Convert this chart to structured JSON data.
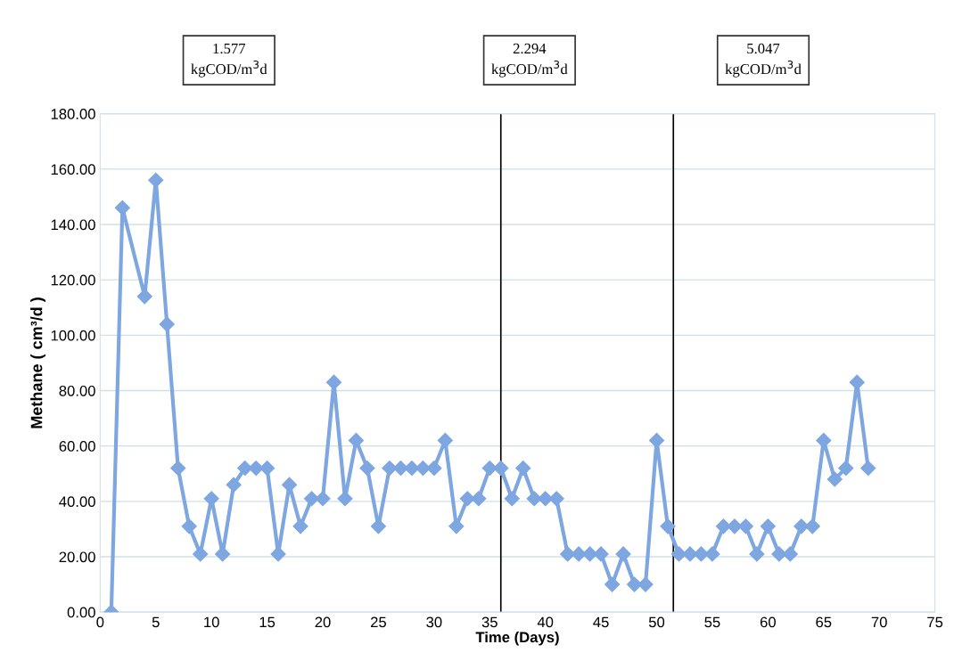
{
  "chart_data": {
    "type": "line",
    "xlabel": "Time (Days)",
    "ylabel": "Methane ( cm³/d )",
    "x": [
      1,
      2,
      4,
      5,
      6,
      7,
      8,
      9,
      10,
      11,
      12,
      13,
      14,
      15,
      16,
      17,
      18,
      19,
      20,
      21,
      22,
      23,
      24,
      25,
      26,
      27,
      28,
      29,
      30,
      31,
      32,
      33,
      34,
      35,
      36,
      37,
      38,
      39,
      40,
      41,
      42,
      43,
      44,
      45,
      46,
      47,
      48,
      49,
      50,
      51,
      52,
      53,
      54,
      55,
      56,
      57,
      58,
      59,
      60,
      61,
      62,
      63,
      64,
      65,
      66,
      67,
      68,
      69
    ],
    "series": [
      {
        "color": "#7ea6e0",
        "values": [
          0,
          146,
          114,
          156,
          104,
          52,
          31,
          21,
          41,
          21,
          46,
          52,
          52,
          52,
          21,
          46,
          31,
          41,
          41,
          83,
          41,
          62,
          52,
          31,
          52,
          52,
          52,
          52,
          52,
          62,
          31,
          41,
          41,
          52,
          52,
          41,
          52,
          41,
          41,
          41,
          21,
          21,
          21,
          21,
          10,
          21,
          10,
          10,
          62,
          31,
          21,
          21,
          21,
          21,
          31,
          31,
          31,
          21,
          31,
          21,
          21,
          31,
          31,
          62,
          48,
          52,
          83,
          52
        ]
      }
    ],
    "xlim": [
      0,
      75
    ],
    "xticks": [
      0,
      5,
      10,
      15,
      20,
      25,
      30,
      35,
      40,
      45,
      50,
      55,
      60,
      65,
      70,
      75
    ],
    "ylim": [
      0,
      180
    ],
    "yticks": [
      {
        "value": 0,
        "label": "0.00"
      },
      {
        "value": 20,
        "label": "20.00"
      },
      {
        "value": 40,
        "label": "40.00"
      },
      {
        "value": 60,
        "label": "60.00"
      },
      {
        "value": 80,
        "label": "80.00"
      },
      {
        "value": 100,
        "label": "100.00"
      },
      {
        "value": 120,
        "label": "120.00"
      },
      {
        "value": 140,
        "label": "140.00"
      },
      {
        "value": 160,
        "label": "160.00"
      },
      {
        "value": 180,
        "label": "180.00"
      }
    ],
    "ref_lines": [
      {
        "axis": "x",
        "value": 36,
        "color": "#000000"
      },
      {
        "axis": "x",
        "value": 51.5,
        "color": "#000000"
      }
    ],
    "annotations": [
      "1.577\nkgCOD/m$^{3}$d",
      "2.294\nkgCOD/m$^{3}$d",
      "5.047\nkgCOD/m$^{3}$d"
    ],
    "grid": "y",
    "marker": "diamond",
    "line_style": "solid"
  }
}
